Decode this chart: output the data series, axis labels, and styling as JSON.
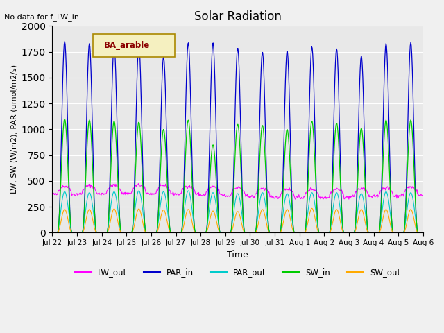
{
  "title": "Solar Radiation",
  "note": "No data for f_LW_in",
  "ylabel": "LW, SW (W/m2), PAR (umol/m2/s)",
  "xlabel": "Time",
  "legend_label": "BA_arable",
  "ylim": [
    0,
    2000
  ],
  "xtick_labels": [
    "Jul 22",
    "Jul 23",
    "Jul 24",
    "Jul 25",
    "Jul 26",
    "Jul 27",
    "Jul 28",
    "Jul 29",
    "Jul 30",
    "Jul 31",
    "Aug 1",
    "Aug 2",
    "Aug 3",
    "Aug 4",
    "Aug 5",
    "Aug 6"
  ],
  "colors": {
    "LW_out": "#ff00ff",
    "PAR_in": "#0000cc",
    "PAR_out": "#00cccc",
    "SW_in": "#00cc00",
    "SW_out": "#ffaa00"
  },
  "bg_color": "#e8e8e8",
  "fig_bg": "#f0f0f0",
  "par_in_peaks": [
    1850,
    1830,
    1810,
    1820,
    1700,
    1840,
    1840,
    1790,
    1750,
    1760,
    1800,
    1780,
    1710,
    1830,
    1840
  ],
  "sw_in_peaks": [
    1100,
    1090,
    1080,
    1070,
    1000,
    1090,
    850,
    1050,
    1040,
    1000,
    1080,
    1060,
    1010,
    1090,
    1090
  ],
  "sw_out_peaks": [
    225,
    225,
    230,
    230,
    220,
    225,
    210,
    205,
    225,
    225,
    235,
    225,
    225,
    225,
    225
  ],
  "par_out_peaks": [
    440,
    430,
    440,
    450,
    440,
    450,
    430,
    420,
    430,
    420,
    430,
    430,
    420,
    440,
    430
  ]
}
